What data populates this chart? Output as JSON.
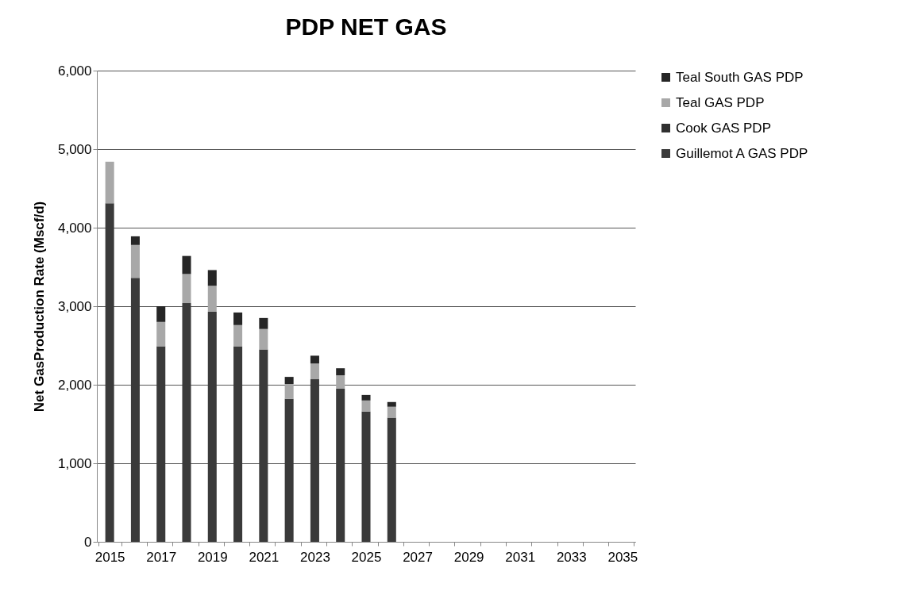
{
  "chart_data": {
    "type": "bar",
    "title": "PDP NET GAS",
    "ylabel": "Net GasProduction Rate (Mscf/d)",
    "categories": [
      "2015",
      null,
      "2017",
      null,
      "2019",
      null,
      "2021",
      null,
      "2023",
      null,
      "2025",
      null,
      "2027",
      null,
      "2029",
      null,
      "2031",
      null,
      "2033",
      null,
      "2035"
    ],
    "stacked": true,
    "series": [
      {
        "name": "Guillemot A GAS PDP",
        "color": "#3a3a3a",
        "values": [
          4310,
          3360,
          2490,
          3040,
          2930,
          2490,
          2450,
          1820,
          2070,
          1950,
          1660,
          1580,
          null,
          null,
          null,
          null,
          null,
          null,
          null,
          null,
          null
        ]
      },
      {
        "name": "Cook GAS PDP",
        "color": "#303030",
        "values": [
          0,
          0,
          0,
          0,
          0,
          0,
          0,
          0,
          0,
          0,
          0,
          0,
          null,
          null,
          null,
          null,
          null,
          null,
          null,
          null,
          null
        ]
      },
      {
        "name": "Teal GAS PDP",
        "color": "#a8a8a8",
        "values": [
          530,
          420,
          310,
          370,
          330,
          270,
          260,
          190,
          200,
          170,
          140,
          140,
          null,
          null,
          null,
          null,
          null,
          null,
          null,
          null,
          null
        ]
      },
      {
        "name": "Teal South GAS PDP",
        "color": "#262626",
        "values": [
          0,
          110,
          200,
          230,
          200,
          160,
          140,
          90,
          100,
          90,
          70,
          60,
          null,
          null,
          null,
          null,
          null,
          null,
          null,
          null,
          null
        ]
      }
    ],
    "ylim": [
      0,
      6000
    ],
    "yticks": [
      0,
      {
        "value": 1000,
        "label": "1,000"
      },
      {
        "value": 2000,
        "label": "2,000"
      },
      {
        "value": 3000,
        "label": "3,000"
      },
      {
        "value": 4000,
        "label": "4,000"
      },
      {
        "value": 5000,
        "label": "5,000"
      },
      {
        "value": 6000,
        "label": "6,000"
      }
    ],
    "grid": "y",
    "legend": "right"
  }
}
